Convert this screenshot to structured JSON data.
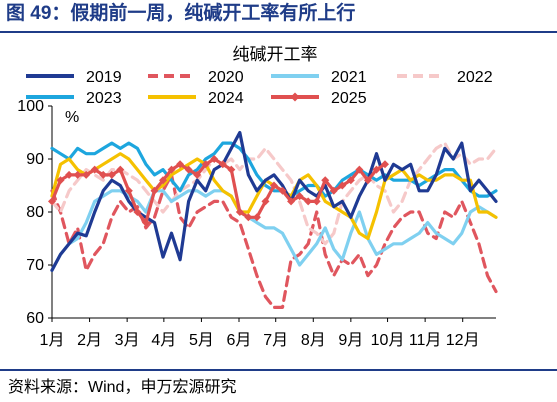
{
  "figure": {
    "title": "图 49：假期前一周，纯碱开工率有所上行",
    "source": "资料来源：Wind，申万宏源研究"
  },
  "chart_data": {
    "type": "line",
    "title": "纯碱开工率",
    "ylabel": "%",
    "xlabel": "",
    "ylim": [
      60,
      100
    ],
    "yticks": [
      60,
      70,
      80,
      90,
      100
    ],
    "xlim": [
      1,
      53
    ],
    "x_tick_labels": [
      "1月",
      "2月",
      "3月",
      "4月",
      "5月",
      "6月",
      "7月",
      "8月",
      "9月",
      "10月",
      "11月",
      "12月"
    ],
    "x_tick_weeks": [
      1,
      5.4,
      9.8,
      14.1,
      18.5,
      22.9,
      27.2,
      31.6,
      36,
      40.3,
      44.7,
      49.1
    ],
    "grid": false,
    "legend": "top",
    "series": [
      {
        "name": "2019",
        "color": "#1f3a93",
        "dash": "solid",
        "marker": false,
        "x": [
          1,
          2,
          3,
          4,
          5,
          6,
          7,
          8,
          9,
          10,
          11,
          12,
          13,
          14,
          15,
          16,
          17,
          18,
          19,
          20,
          21,
          22,
          23,
          24,
          25,
          26,
          27,
          28,
          29,
          30,
          31,
          32,
          33,
          34,
          35,
          36,
          37,
          38,
          39,
          40,
          41,
          42,
          43,
          44,
          45,
          46,
          47,
          48,
          49,
          50,
          51,
          52,
          53
        ],
        "values": [
          69,
          72,
          74,
          76,
          75.5,
          80,
          84,
          86,
          85,
          82,
          80,
          79,
          78,
          71.5,
          76,
          71,
          82,
          86,
          84,
          88,
          89,
          92,
          95,
          87,
          84,
          86,
          87,
          85,
          82,
          86,
          84,
          83,
          85,
          81,
          82,
          79,
          83,
          86,
          91,
          86,
          89,
          88,
          89,
          84,
          84,
          87,
          92,
          90,
          93,
          84,
          86,
          84,
          82
        ]
      },
      {
        "name": "2020",
        "color": "#e0565e",
        "dash": "dash",
        "marker": false,
        "x": [
          1,
          2,
          3,
          4,
          5,
          6,
          7,
          8,
          9,
          10,
          11,
          12,
          13,
          14,
          15,
          16,
          17,
          18,
          19,
          20,
          21,
          22,
          23,
          24,
          25,
          26,
          27,
          28,
          29,
          30,
          31,
          32,
          33,
          34,
          35,
          36,
          37,
          38,
          39,
          40,
          41,
          42,
          43,
          44,
          45,
          46,
          47,
          48,
          49,
          50,
          51,
          52,
          53
        ],
        "values": [
          84,
          80,
          74,
          77,
          69,
          72,
          74,
          79,
          82,
          80,
          81,
          77,
          79,
          84,
          87,
          79,
          77,
          80,
          81,
          82,
          82,
          79,
          78,
          73,
          68,
          64,
          62,
          62,
          71,
          72,
          74,
          80,
          72,
          68,
          71,
          70,
          72,
          68,
          70,
          74,
          77,
          79,
          80,
          80,
          76,
          75,
          80,
          79,
          82,
          78,
          74,
          68,
          65
        ]
      },
      {
        "name": "2021",
        "color": "#7fd0f0",
        "dash": "solid",
        "marker": false,
        "x": [
          1,
          2,
          3,
          4,
          5,
          6,
          7,
          8,
          9,
          10,
          11,
          12,
          13,
          14,
          15,
          16,
          17,
          18,
          19,
          20,
          21,
          22,
          23,
          24,
          25,
          26,
          27,
          28,
          29,
          30,
          31,
          32,
          33,
          34,
          35,
          36,
          37,
          38,
          39,
          40,
          41,
          42,
          43,
          44,
          45,
          46,
          47,
          48,
          49,
          50,
          51,
          52,
          53
        ],
        "values": [
          69,
          72,
          74,
          75,
          78,
          82,
          83,
          84,
          84,
          83,
          82,
          80,
          84,
          84,
          82,
          83,
          84,
          84,
          83,
          84,
          84,
          83,
          80,
          79,
          78,
          77,
          77,
          76,
          73,
          70,
          72,
          74,
          77,
          73,
          71,
          76,
          80,
          75,
          72,
          73,
          74,
          74,
          75,
          76,
          78,
          76,
          75,
          74,
          76,
          80,
          81,
          80,
          79
        ]
      },
      {
        "name": "2022",
        "color": "#f6c9c9",
        "dash": "dash",
        "marker": false,
        "x": [
          1,
          2,
          3,
          4,
          5,
          6,
          7,
          8,
          9,
          10,
          11,
          12,
          13,
          14,
          15,
          16,
          17,
          18,
          19,
          20,
          21,
          22,
          23,
          24,
          25,
          26,
          27,
          28,
          29,
          30,
          31,
          32,
          33,
          34,
          35,
          36,
          37,
          38,
          39,
          40,
          41,
          42,
          43,
          44,
          45,
          46,
          47,
          48,
          49,
          50,
          51,
          52,
          53
        ],
        "values": [
          82,
          80,
          84,
          86,
          88,
          87,
          86,
          88,
          88,
          87,
          86,
          84,
          82,
          80,
          82,
          84,
          85,
          86,
          88,
          90,
          89,
          90,
          88,
          90,
          90,
          92,
          90,
          88,
          86,
          82,
          77,
          76,
          74,
          76,
          82,
          84,
          86,
          87,
          85,
          84,
          80,
          82,
          86,
          88,
          90,
          92,
          93,
          90,
          91,
          89,
          90,
          90,
          92
        ]
      },
      {
        "name": "2023",
        "color": "#1da6de",
        "dash": "solid",
        "marker": false,
        "x": [
          1,
          2,
          3,
          4,
          5,
          6,
          7,
          8,
          9,
          10,
          11,
          12,
          13,
          14,
          15,
          16,
          17,
          18,
          19,
          20,
          21,
          22,
          23,
          24,
          25,
          26,
          27,
          28,
          29,
          30,
          31,
          32,
          33,
          34,
          35,
          36,
          37,
          38,
          39,
          40,
          41,
          42,
          43,
          44,
          45,
          46,
          47,
          48,
          49,
          50,
          51,
          52,
          53
        ],
        "values": [
          92,
          91,
          90,
          92,
          91,
          91,
          92,
          93,
          92,
          93,
          92,
          89,
          87,
          88,
          86,
          84,
          87,
          88,
          90,
          91,
          93,
          93,
          92,
          90,
          87,
          85,
          84,
          84,
          83,
          84,
          85,
          85,
          83,
          84,
          86,
          87,
          88,
          87,
          86,
          87,
          86,
          86,
          86,
          85,
          86,
          87,
          88,
          88,
          86,
          84,
          83,
          83,
          84
        ]
      },
      {
        "name": "2024",
        "color": "#f5c100",
        "dash": "solid",
        "marker": false,
        "x": [
          1,
          2,
          3,
          4,
          5,
          6,
          7,
          8,
          9,
          10,
          11,
          12,
          13,
          14,
          15,
          16,
          17,
          18,
          19,
          20,
          21,
          22,
          23,
          24,
          25,
          26,
          27,
          28,
          29,
          30,
          31,
          32,
          33,
          34,
          35,
          36,
          37,
          38,
          39,
          40,
          41,
          42,
          43,
          44,
          45,
          46,
          47,
          48,
          49,
          50,
          51,
          52,
          53
        ],
        "values": [
          83,
          89,
          90,
          88,
          87,
          88,
          89,
          90,
          91,
          90,
          88,
          86,
          84,
          85,
          87,
          88,
          89,
          90,
          89,
          86,
          84,
          83,
          80,
          80,
          83,
          86,
          85,
          84,
          83,
          86,
          87,
          85,
          82,
          81,
          80,
          79,
          76,
          75,
          80,
          86,
          87,
          88,
          86,
          87,
          86,
          86,
          87,
          87,
          86,
          86,
          80,
          80,
          79
        ]
      },
      {
        "name": "2025",
        "color": "#e05050",
        "dash": "solid",
        "marker": true,
        "x": [
          1,
          2,
          3,
          4,
          5,
          6,
          7,
          8,
          9,
          10,
          11,
          12,
          13,
          14,
          15,
          16,
          17,
          18,
          19,
          20,
          21,
          22,
          23,
          24,
          25,
          26,
          27,
          28,
          29,
          30,
          31,
          32,
          33,
          34,
          35,
          36,
          37,
          38,
          39,
          40
        ],
        "values": [
          82,
          86,
          87,
          87,
          87,
          88,
          87,
          87,
          88,
          84,
          80,
          78,
          84,
          86,
          88,
          89,
          88,
          87,
          89,
          90,
          89,
          88,
          80,
          79,
          79,
          82,
          85,
          84,
          82,
          83,
          82,
          82,
          86,
          84,
          85,
          86,
          88,
          86,
          88,
          89
        ]
      }
    ]
  }
}
